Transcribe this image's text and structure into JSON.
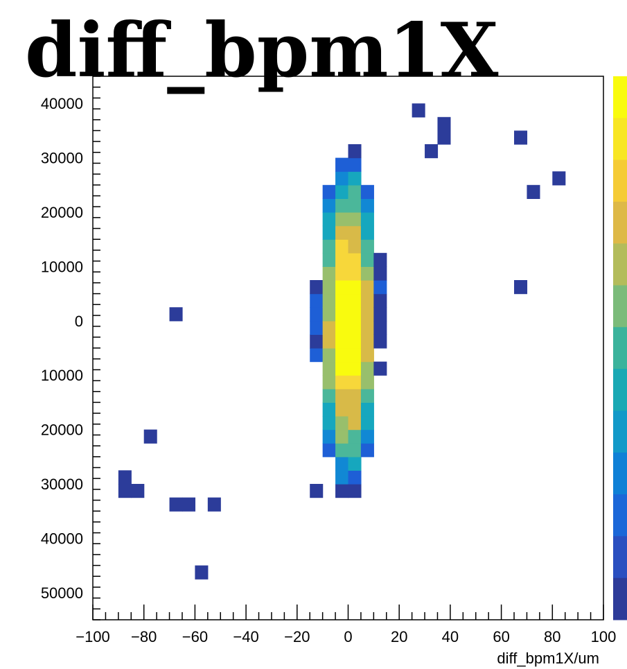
{
  "chart_data": {
    "type": "heatmap",
    "title": "diff_bpm1X",
    "xlabel": "diff_bpm1X/um",
    "ylabel": "",
    "xlim": [
      -100,
      100
    ],
    "ylim": [
      -55000,
      45000
    ],
    "x_ticks": [
      {
        "value": -100,
        "label": "−100"
      },
      {
        "value": -80,
        "label": "−80"
      },
      {
        "value": -60,
        "label": "−60"
      },
      {
        "value": -40,
        "label": "−40"
      },
      {
        "value": -20,
        "label": "−20"
      },
      {
        "value": 0,
        "label": "0"
      },
      {
        "value": 20,
        "label": "20"
      },
      {
        "value": 40,
        "label": "40"
      },
      {
        "value": 60,
        "label": "60"
      },
      {
        "value": 80,
        "label": "80"
      },
      {
        "value": 100,
        "label": "100"
      }
    ],
    "y_ticks": [
      {
        "value": 40000,
        "label": "40000"
      },
      {
        "value": 30000,
        "label": "30000"
      },
      {
        "value": 20000,
        "label": "20000"
      },
      {
        "value": 10000,
        "label": "10000"
      },
      {
        "value": 0,
        "label": "0"
      },
      {
        "value": -10000,
        "label": "10000"
      },
      {
        "value": -20000,
        "label": "20000"
      },
      {
        "value": -30000,
        "label": "30000"
      },
      {
        "value": -40000,
        "label": "40000"
      },
      {
        "value": -50000,
        "label": "50000"
      }
    ],
    "x_bin_width": 5,
    "y_bin_width": 2500,
    "correlation_slope": 420,
    "sigma_along": 28,
    "sigma_across": 4.8,
    "outlier_cells": [
      [
        -67.5,
        1250
      ],
      [
        -87.5,
        -28750
      ],
      [
        -87.5,
        -31250
      ],
      [
        -82.5,
        -31250
      ],
      [
        -57.5,
        -46250
      ],
      [
        -12.5,
        -31250
      ],
      [
        27.5,
        38750
      ],
      [
        37.5,
        36250
      ],
      [
        37.5,
        33750
      ],
      [
        32.5,
        31250
      ],
      [
        67.5,
        33750
      ],
      [
        82.5,
        26250
      ],
      [
        -77.5,
        -21250
      ],
      [
        -67.5,
        -33750
      ],
      [
        -62.5,
        -33750
      ],
      [
        -52.5,
        -33750
      ],
      [
        72.5,
        23750
      ],
      [
        67.5,
        6250
      ]
    ],
    "colormap": [
      "#2c3c9a",
      "#1e5fd6",
      "#1188d4",
      "#16a7be",
      "#4bb79a",
      "#98bf6c",
      "#d8ba48",
      "#f7d73a",
      "#f9fb0e"
    ],
    "palette_strip_colors": [
      "#2d3b99",
      "#2a4fc0",
      "#1b67d8",
      "#0f80d6",
      "#1299c8",
      "#1aa9b4",
      "#3bb39c",
      "#7bbb7a",
      "#b3bc5b",
      "#deb947",
      "#f5cb36",
      "#f8e624",
      "#f9fb0e"
    ]
  }
}
